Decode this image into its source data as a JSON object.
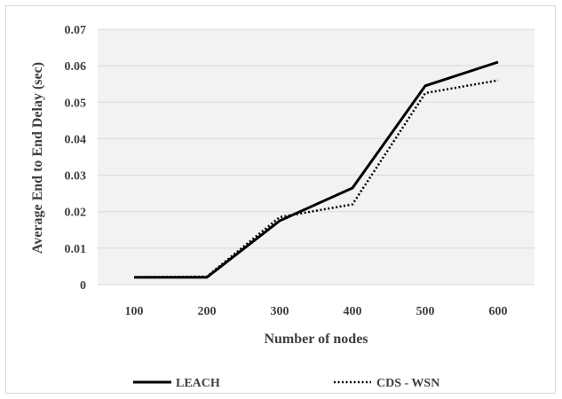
{
  "chart_data": {
    "type": "line",
    "title": "",
    "xlabel": "Number of nodes",
    "ylabel": "Average End to End Delay (sec)",
    "categories": [
      "100",
      "200",
      "300",
      "400",
      "500",
      "600"
    ],
    "ylim": [
      0,
      0.07
    ],
    "yticks": [
      "0",
      "0.01",
      "0.02",
      "0.03",
      "0.04",
      "0.05",
      "0.06",
      "0.07"
    ],
    "grid": true,
    "legend_position": "bottom",
    "series": [
      {
        "name": "LEACH",
        "style": "solid",
        "color": "#000000",
        "values": [
          0.002,
          0.002,
          0.0175,
          0.0265,
          0.0545,
          0.061
        ]
      },
      {
        "name": "CDS - WSN",
        "style": "dotted",
        "color": "#000000",
        "values": [
          0.002,
          0.0022,
          0.0185,
          0.022,
          0.0525,
          0.056
        ]
      }
    ]
  }
}
